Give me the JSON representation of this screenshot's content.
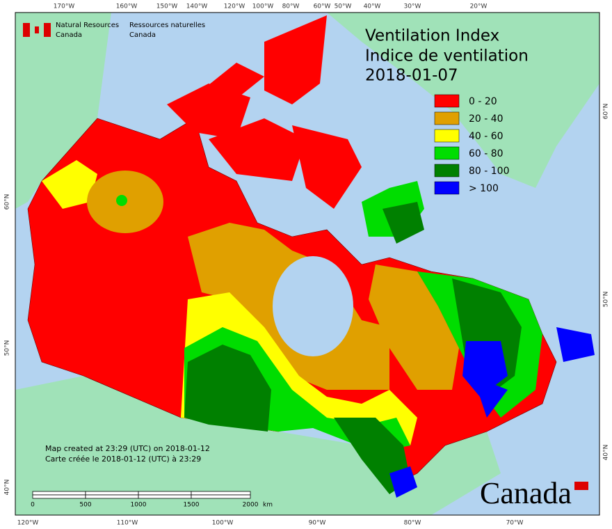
{
  "header": {
    "org_en": [
      "Natural Resources",
      "Canada"
    ],
    "org_fr": [
      "Ressources naturelles",
      "Canada"
    ]
  },
  "title": [
    "Ventilation Index",
    "Indice de ventilation",
    "2018-01-07"
  ],
  "legend": [
    {
      "label": "0 - 20",
      "color": "#ff0000"
    },
    {
      "label": "20 - 40",
      "color": "#e0a000"
    },
    {
      "label": "40 - 60",
      "color": "#ffff00"
    },
    {
      "label": "60 - 80",
      "color": "#00dd00"
    },
    {
      "label": "80 - 100",
      "color": "#008000"
    },
    {
      "label": "> 100",
      "color": "#0000ff"
    }
  ],
  "graticule": {
    "top": [
      "170°W",
      "160°W",
      "150°W",
      "140°W",
      "120°W",
      "100°W",
      "80°W",
      "60°W",
      "50°W",
      "40°W",
      "30°W",
      "20°W"
    ],
    "bottom": [
      "120°W",
      "110°W",
      "100°W",
      "90°W",
      "80°W",
      "70°W"
    ],
    "left": [
      "60°N",
      "50°N",
      "40°N"
    ],
    "right": [
      "60°N",
      "50°N",
      "40°N"
    ]
  },
  "note": [
    "Map created at 23:29 (UTC) on 2018-01-12",
    "Carte créée le 2018-01-12 (UTC) à 23:29"
  ],
  "scale_bar": {
    "ticks": [
      "0",
      "500",
      "1000",
      "1500",
      "2000"
    ],
    "unit": "km"
  },
  "wordmark": "Canada"
}
